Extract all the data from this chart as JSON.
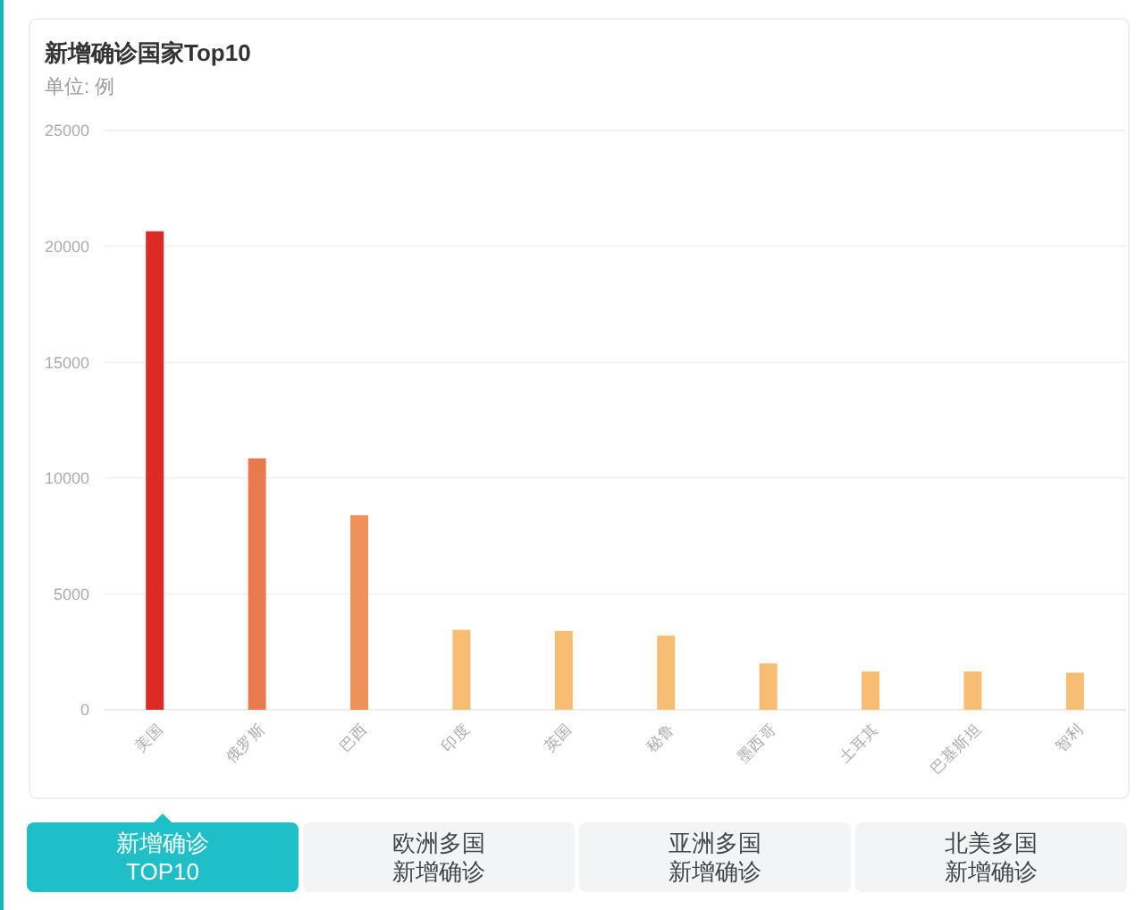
{
  "chart_data": {
    "type": "bar",
    "title": "新增确诊国家Top10",
    "subtitle": "单位: 例",
    "categories": [
      "美国",
      "俄罗斯",
      "巴西",
      "印度",
      "英国",
      "秘鲁",
      "墨西哥",
      "土耳其",
      "巴基斯坦",
      "智利"
    ],
    "values": [
      20650,
      10850,
      8400,
      3450,
      3400,
      3200,
      2000,
      1650,
      1650,
      1600
    ],
    "colors": [
      "#dc2a24",
      "#e97a4f",
      "#ef9259",
      "#f7bd72",
      "#f7bd72",
      "#f7bd72",
      "#f7bd72",
      "#f7bd72",
      "#f7bd72",
      "#f7bd72"
    ],
    "ylim": [
      0,
      25000
    ],
    "yticks": [
      0,
      5000,
      10000,
      15000,
      20000,
      25000
    ],
    "grid": "y",
    "annotations": [
      "新增确诊 TOP10",
      "欧洲多国新增确诊",
      "亚洲多国新增确诊",
      "北美多国新增确诊"
    ]
  }
}
